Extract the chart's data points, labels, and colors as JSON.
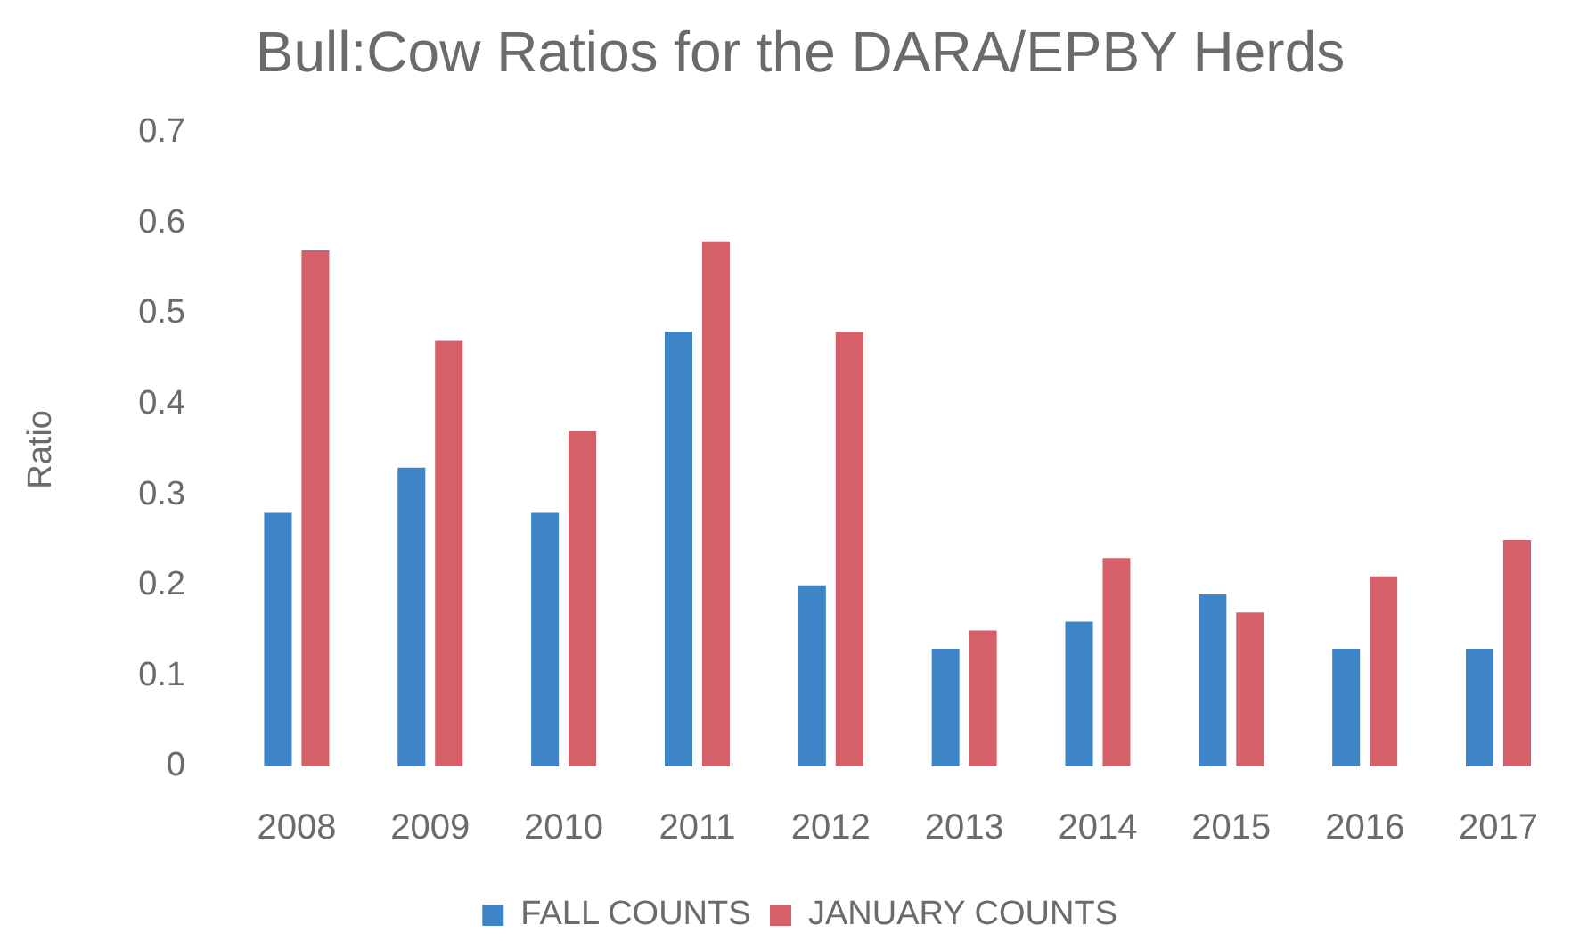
{
  "chart_data": {
    "type": "bar",
    "title": "Bull:Cow Ratios for the DARA/EPBY Herds",
    "ylabel": "Ratio",
    "categories": [
      "2008",
      "2009",
      "2010",
      "2011",
      "2012",
      "2013",
      "2014",
      "2015",
      "2016",
      "2017"
    ],
    "series": [
      {
        "name": "FALL COUNTS",
        "color": "#3d85c6",
        "values": [
          0.28,
          0.33,
          0.28,
          0.48,
          0.2,
          0.13,
          0.16,
          0.19,
          0.13,
          0.13
        ]
      },
      {
        "name": "JANUARY COUNTS",
        "color": "#d6606a",
        "values": [
          0.57,
          0.47,
          0.37,
          0.58,
          0.48,
          0.15,
          0.23,
          0.17,
          0.21,
          0.25
        ]
      }
    ],
    "ylim": [
      0,
      0.7
    ],
    "yticks": [
      0,
      0.1,
      0.2,
      0.3,
      0.4,
      0.5,
      0.6,
      0.7
    ],
    "grid": false,
    "legend": "bottom"
  }
}
